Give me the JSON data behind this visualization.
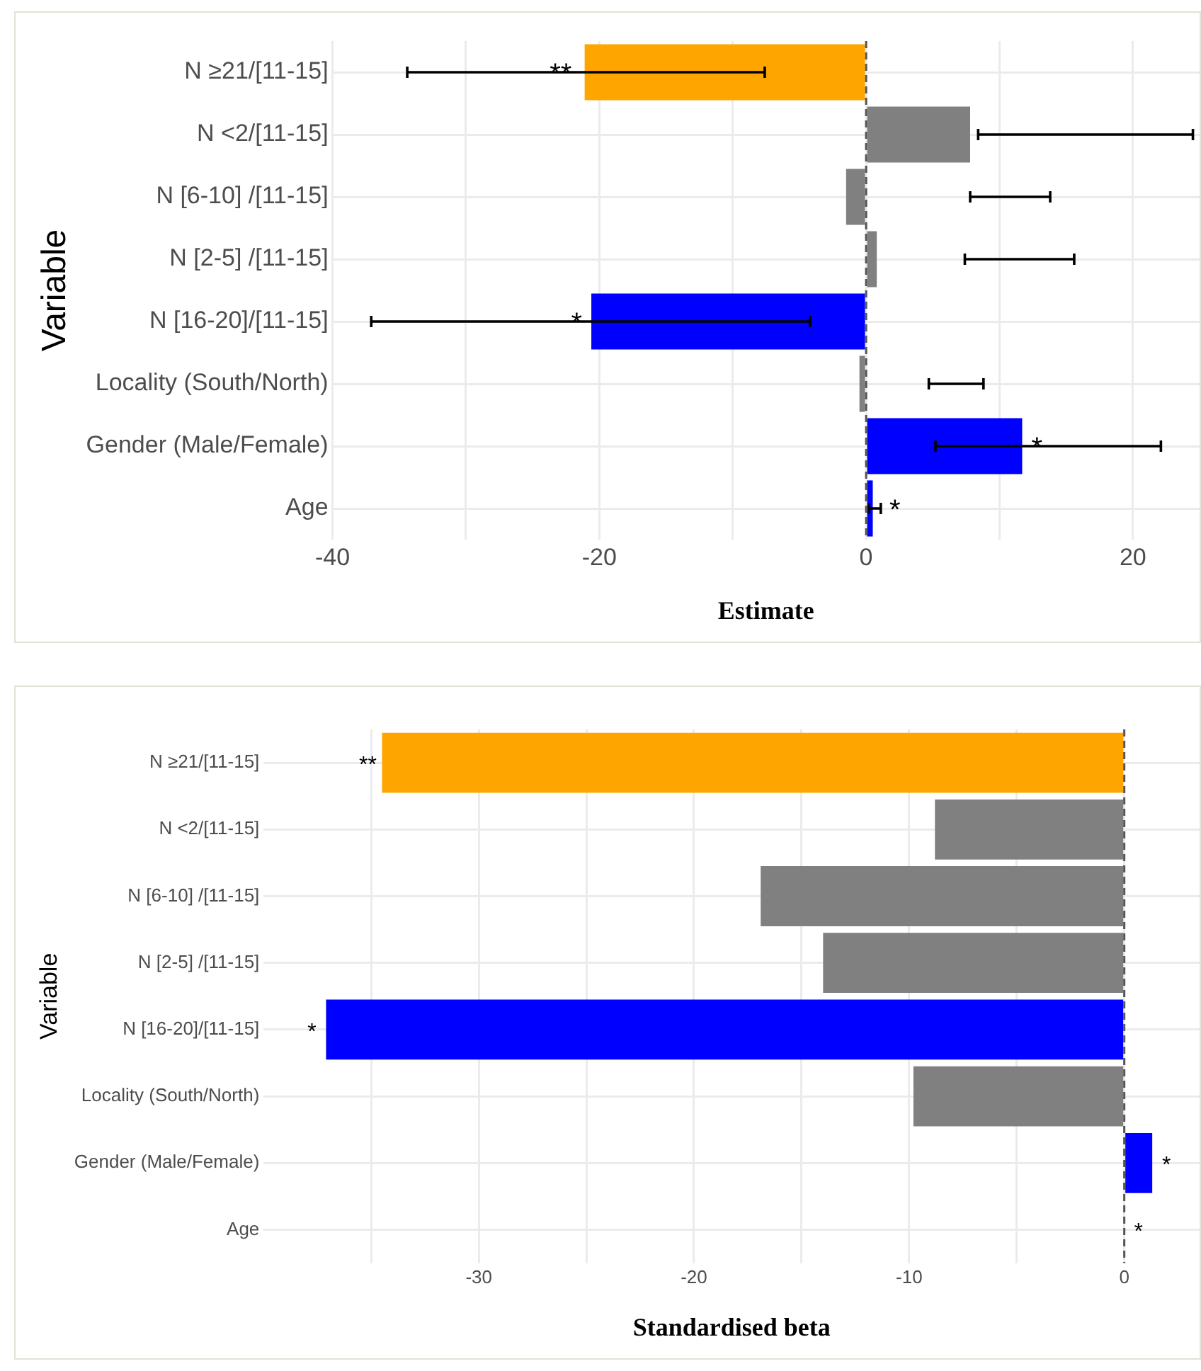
{
  "chart_data": [
    {
      "type": "bar",
      "orientation": "horizontal",
      "xlabel": "Estimate",
      "ylabel": "Variable",
      "categories": [
        "N ≥21/[11-15]",
        "N <2/[11-15]",
        "N [6-10] /[11-15]",
        "N [2-5] /[11-15]",
        "N [16-20]/[11-15]",
        "Locality (South/North)",
        "Gender (Male/Female)",
        "Age"
      ],
      "values": [
        -21.1,
        7.8,
        -1.5,
        0.8,
        -20.6,
        -0.5,
        11.7,
        0.5
      ],
      "colors": [
        "#ffa500",
        "#808080",
        "#808080",
        "#808080",
        "#0000ff",
        "#808080",
        "#0000ff",
        "#0000ff"
      ],
      "errors": [
        [
          -34.4,
          -7.6
        ],
        [
          8.4,
          24.5
        ],
        [
          7.8,
          13.8
        ],
        [
          7.4,
          15.6
        ],
        [
          -37.1,
          -4.2
        ],
        [
          4.7,
          8.8
        ],
        [
          5.2,
          22.1
        ],
        [
          0.2,
          1.1
        ]
      ],
      "xlim": [
        -40,
        25
      ],
      "xticks": [
        -40,
        {
          "value": -30,
          "label": null
        },
        -20,
        {
          "value": -10,
          "label": null
        },
        0,
        {
          "value": 10,
          "label": null
        },
        20
      ],
      "grid": true,
      "ref_lines": [
        {
          "axis": "x",
          "value": 0,
          "line_style": "dashed",
          "color": "#555555"
        }
      ],
      "annotations": [
        {
          "text": "**",
          "x": -22.9,
          "y": "N ≥21/[11-15]"
        },
        {
          "text": "*",
          "x": -21.7,
          "y": "N [16-20]/[11-15]"
        },
        {
          "text": "*",
          "x": 12.8,
          "y": "Gender (Male/Female)"
        },
        {
          "text": "*",
          "x": 1.1,
          "y": "Age"
        }
      ]
    },
    {
      "type": "bar",
      "orientation": "horizontal",
      "xlabel": "Standardised beta",
      "ylabel": "Variable",
      "categories": [
        "N ≥21/[11-15]",
        "N <2/[11-15]",
        "N [6-10] /[11-15]",
        "N [2-5] /[11-15]",
        "N [16-20]/[11-15]",
        "Locality (South/North)",
        "Gender (Male/Female)",
        "Age"
      ],
      "values": [
        -34.5,
        -8.8,
        -16.9,
        -14.0,
        -37.1,
        -9.8,
        1.3,
        0
      ],
      "colors": [
        "#ffa500",
        "#808080",
        "#808080",
        "#808080",
        "#0000ff",
        "#808080",
        "#0000ff",
        "#0000ff"
      ],
      "xlim": [
        -40,
        3.5
      ],
      "xticks": [
        {
          "value": -35,
          "label": null
        },
        -30,
        {
          "value": -25,
          "label": null
        },
        -20,
        {
          "value": -15,
          "label": null
        },
        -10,
        {
          "value": -5,
          "label": null
        },
        0
      ],
      "grid": true,
      "ref_lines": [
        {
          "axis": "x",
          "value": 0,
          "line_style": "dashed",
          "color": "#555555"
        }
      ],
      "annotations": [
        {
          "text": "**",
          "x": -34.5,
          "y": "N ≥21/[11-15]"
        },
        {
          "text": "*",
          "x": -37.1,
          "y": "N [16-20]/[11-15]"
        },
        {
          "text": "*",
          "x": 1.3,
          "y": "Gender (Male/Female)"
        },
        {
          "text": "*",
          "x": 0,
          "y": "Age"
        }
      ]
    }
  ]
}
